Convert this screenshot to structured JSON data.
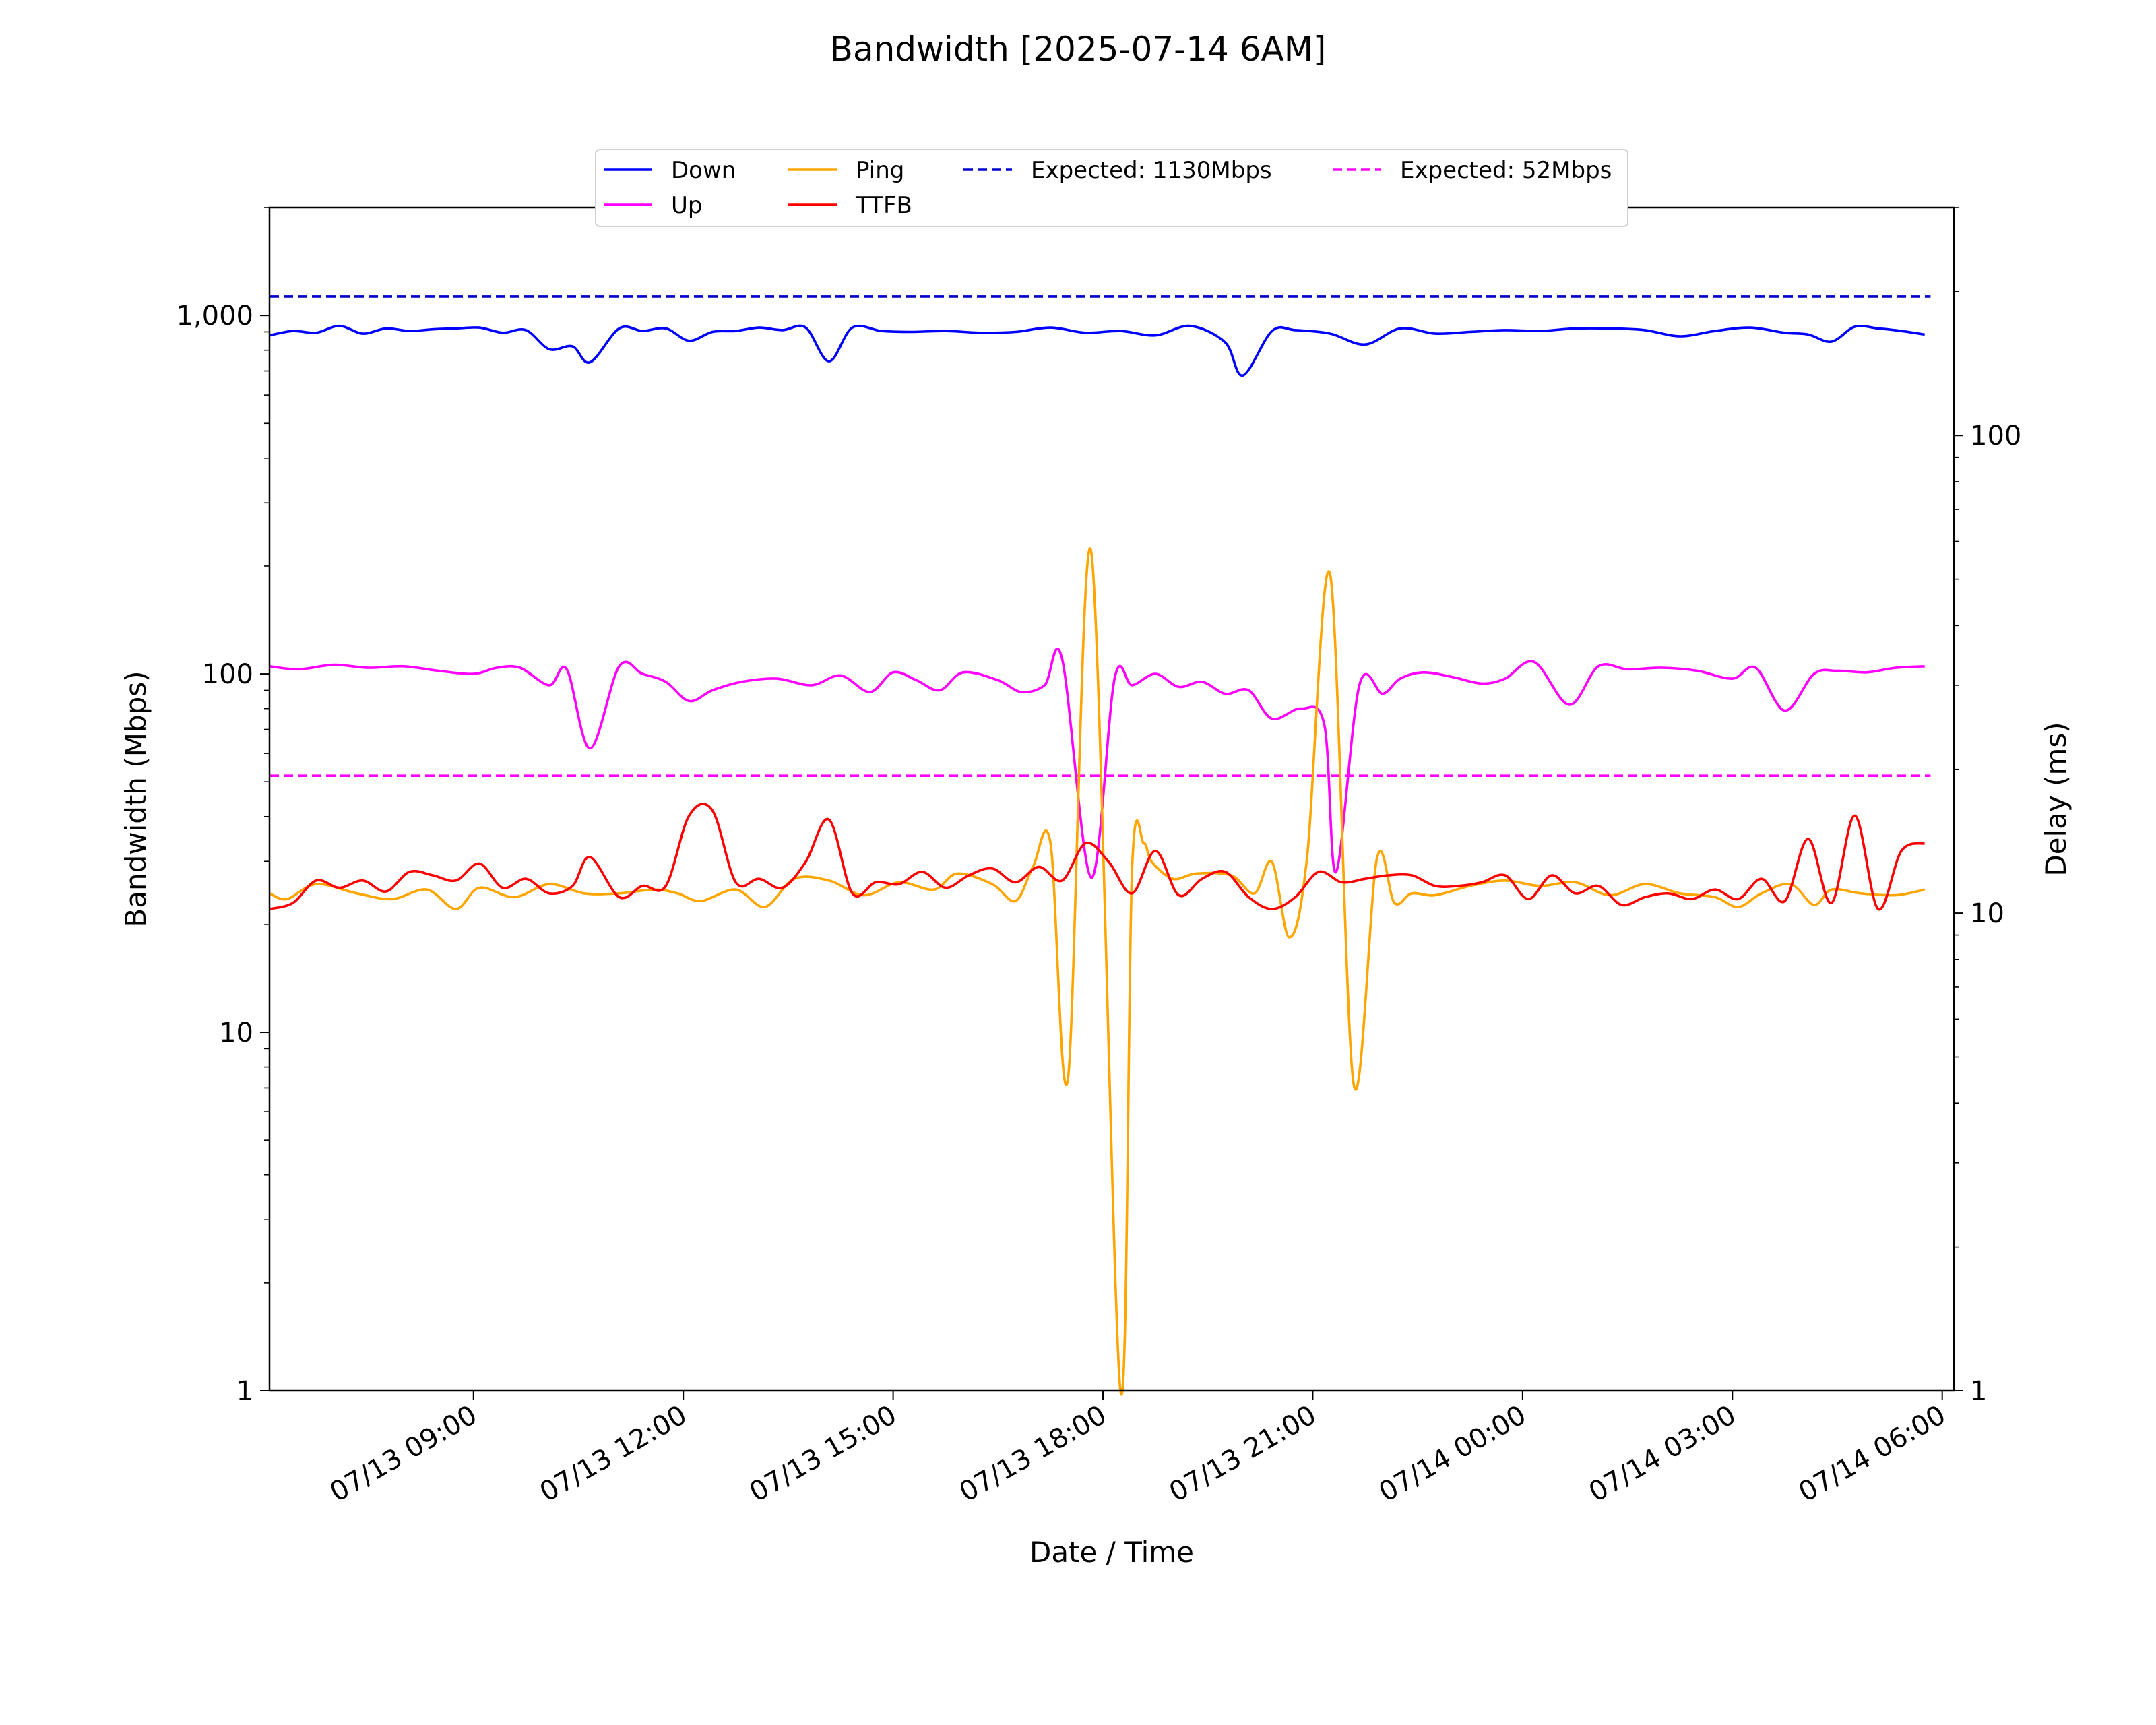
{
  "chart_data": {
    "type": "line",
    "title": "Bandwidth [2025-07-14 6AM]",
    "xlabel": "Date / Time",
    "ylabel": "Bandwidth (Mbps)",
    "ylabel_right": "Delay (ms)",
    "x_range": [
      "2025-07-13 06:05",
      "2025-07-14 06:10"
    ],
    "y_scale": "log",
    "ylim": [
      1,
      2000
    ],
    "ylim_right": [
      1,
      300
    ],
    "grid": false,
    "legend_position": "top-center",
    "x_ticks": [
      {
        "t": "2025-07-13 09:00",
        "label": "07/13 09:00"
      },
      {
        "t": "2025-07-13 12:00",
        "label": "07/13 12:00"
      },
      {
        "t": "2025-07-13 15:00",
        "label": "07/13 15:00"
      },
      {
        "t": "2025-07-13 18:00",
        "label": "07/13 18:00"
      },
      {
        "t": "2025-07-13 21:00",
        "label": "07/13 21:00"
      },
      {
        "t": "2025-07-14 00:00",
        "label": "07/14 00:00"
      },
      {
        "t": "2025-07-14 03:00",
        "label": "07/14 03:00"
      },
      {
        "t": "2025-07-14 06:00",
        "label": "07/14 06:00"
      }
    ],
    "y_ticks": [
      {
        "v": 1,
        "label": "1"
      },
      {
        "v": 10,
        "label": "10"
      },
      {
        "v": 100,
        "label": "100"
      },
      {
        "v": 1000,
        "label": "1,000"
      }
    ],
    "y_ticks_right": [
      {
        "v": 1,
        "label": "1"
      },
      {
        "v": 10,
        "label": "10"
      },
      {
        "v": 100,
        "label": "100"
      }
    ],
    "series": [
      {
        "name": "Down",
        "axis": "left",
        "color": "#0000ff",
        "style": "solid",
        "x": [
          "2025-07-13 06:05",
          "2025-07-13 06:25",
          "2025-07-13 06:45",
          "2025-07-13 07:05",
          "2025-07-13 07:25",
          "2025-07-13 07:45",
          "2025-07-13 08:05",
          "2025-07-13 08:25",
          "2025-07-13 08:45",
          "2025-07-13 09:05",
          "2025-07-13 09:25",
          "2025-07-13 09:45",
          "2025-07-13 10:05",
          "2025-07-13 10:25",
          "2025-07-13 10:40",
          "2025-07-13 11:05",
          "2025-07-13 11:25",
          "2025-07-13 11:45",
          "2025-07-13 12:05",
          "2025-07-13 12:25",
          "2025-07-13 12:45",
          "2025-07-13 13:05",
          "2025-07-13 13:25",
          "2025-07-13 13:45",
          "2025-07-13 14:05",
          "2025-07-13 14:25",
          "2025-07-13 14:50",
          "2025-07-13 15:15",
          "2025-07-13 15:45",
          "2025-07-13 16:15",
          "2025-07-13 16:45",
          "2025-07-13 17:15",
          "2025-07-13 17:45",
          "2025-07-13 18:15",
          "2025-07-13 18:45",
          "2025-07-13 19:15",
          "2025-07-13 19:45",
          "2025-07-13 20:00",
          "2025-07-13 20:25",
          "2025-07-13 20:45",
          "2025-07-13 21:15",
          "2025-07-13 21:45",
          "2025-07-13 22:15",
          "2025-07-13 22:45",
          "2025-07-13 23:15",
          "2025-07-13 23:45",
          "2025-07-14 00:15",
          "2025-07-14 00:45",
          "2025-07-14 01:15",
          "2025-07-14 01:45",
          "2025-07-14 02:15",
          "2025-07-14 02:45",
          "2025-07-14 03:15",
          "2025-07-14 03:45",
          "2025-07-14 04:05",
          "2025-07-14 04:25",
          "2025-07-14 04:45",
          "2025-07-14 05:05",
          "2025-07-14 05:25",
          "2025-07-14 05:45"
        ],
        "y": [
          880,
          905,
          895,
          935,
          890,
          920,
          905,
          915,
          920,
          925,
          895,
          910,
          805,
          820,
          740,
          920,
          905,
          920,
          850,
          900,
          905,
          925,
          910,
          925,
          745,
          925,
          905,
          900,
          905,
          895,
          900,
          925,
          895,
          905,
          880,
          935,
          840,
          680,
          905,
          910,
          890,
          830,
          920,
          890,
          900,
          910,
          905,
          920,
          920,
          910,
          875,
          905,
          925,
          895,
          885,
          845,
          930,
          920,
          905,
          885
        ]
      },
      {
        "name": "Up",
        "axis": "left",
        "color": "#ff00ff",
        "style": "solid",
        "x": [
          "2025-07-13 06:05",
          "2025-07-13 06:30",
          "2025-07-13 07:00",
          "2025-07-13 07:30",
          "2025-07-13 08:00",
          "2025-07-13 08:30",
          "2025-07-13 09:00",
          "2025-07-13 09:20",
          "2025-07-13 09:40",
          "2025-07-13 10:05",
          "2025-07-13 10:20",
          "2025-07-13 10:40",
          "2025-07-13 11:05",
          "2025-07-13 11:25",
          "2025-07-13 11:45",
          "2025-07-13 12:05",
          "2025-07-13 12:25",
          "2025-07-13 12:50",
          "2025-07-13 13:20",
          "2025-07-13 13:50",
          "2025-07-13 14:15",
          "2025-07-13 14:40",
          "2025-07-13 15:00",
          "2025-07-13 15:20",
          "2025-07-13 15:40",
          "2025-07-13 16:00",
          "2025-07-13 16:30",
          "2025-07-13 16:50",
          "2025-07-13 17:10",
          "2025-07-13 17:25",
          "2025-07-13 17:50",
          "2025-07-13 18:10",
          "2025-07-13 18:25",
          "2025-07-13 18:45",
          "2025-07-13 19:05",
          "2025-07-13 19:25",
          "2025-07-13 19:45",
          "2025-07-13 20:05",
          "2025-07-13 20:25",
          "2025-07-13 20:50",
          "2025-07-13 21:10",
          "2025-07-13 21:20",
          "2025-07-13 21:40",
          "2025-07-13 22:00",
          "2025-07-13 22:15",
          "2025-07-13 22:35",
          "2025-07-13 23:00",
          "2025-07-13 23:25",
          "2025-07-13 23:45",
          "2025-07-14 00:10",
          "2025-07-14 00:40",
          "2025-07-14 01:05",
          "2025-07-14 01:30",
          "2025-07-14 02:00",
          "2025-07-14 02:30",
          "2025-07-14 03:00",
          "2025-07-14 03:20",
          "2025-07-14 03:45",
          "2025-07-14 04:10",
          "2025-07-14 04:30",
          "2025-07-14 04:55",
          "2025-07-14 05:20",
          "2025-07-14 05:45"
        ],
        "y": [
          105,
          103,
          106,
          104,
          105,
          102,
          100,
          104,
          104,
          93,
          103,
          62,
          105,
          100,
          95,
          84,
          90,
          95,
          97,
          93,
          99,
          89,
          101,
          96,
          90,
          101,
          96,
          89,
          93,
          110,
          27,
          97,
          93,
          100,
          92,
          95,
          88,
          90,
          75,
          80,
          72,
          28,
          93,
          88,
          97,
          101,
          98,
          94,
          97,
          108,
          82,
          105,
          103,
          104,
          102,
          97,
          104,
          79,
          100,
          102,
          101,
          104,
          105
        ]
      },
      {
        "name": "Ping",
        "axis": "right",
        "color": "#ffa500",
        "style": "solid",
        "x": [
          "2025-07-13 06:05",
          "2025-07-13 06:20",
          "2025-07-13 06:45",
          "2025-07-13 07:20",
          "2025-07-13 07:50",
          "2025-07-13 08:20",
          "2025-07-13 08:45",
          "2025-07-13 09:05",
          "2025-07-13 09:35",
          "2025-07-13 10:05",
          "2025-07-13 10:35",
          "2025-07-13 11:05",
          "2025-07-13 11:35",
          "2025-07-13 11:55",
          "2025-07-13 12:15",
          "2025-07-13 12:45",
          "2025-07-13 13:10",
          "2025-07-13 13:35",
          "2025-07-13 14:05",
          "2025-07-13 14:35",
          "2025-07-13 15:05",
          "2025-07-13 15:35",
          "2025-07-13 15:55",
          "2025-07-13 16:25",
          "2025-07-13 16:45",
          "2025-07-13 17:00",
          "2025-07-13 17:15",
          "2025-07-13 17:30",
          "2025-07-13 17:50",
          "2025-07-13 18:15",
          "2025-07-13 18:25",
          "2025-07-13 18:35",
          "2025-07-13 18:42",
          "2025-07-13 19:00",
          "2025-07-13 19:20",
          "2025-07-13 19:50",
          "2025-07-13 20:10",
          "2025-07-13 20:25",
          "2025-07-13 20:40",
          "2025-07-13 20:55",
          "2025-07-13 21:15",
          "2025-07-13 21:35",
          "2025-07-13 21:55",
          "2025-07-13 22:10",
          "2025-07-13 22:25",
          "2025-07-13 22:45",
          "2025-07-13 23:15",
          "2025-07-13 23:45",
          "2025-07-14 00:15",
          "2025-07-14 00:45",
          "2025-07-14 01:15",
          "2025-07-14 01:45",
          "2025-07-14 02:15",
          "2025-07-14 02:45",
          "2025-07-14 03:05",
          "2025-07-14 03:25",
          "2025-07-14 03:50",
          "2025-07-14 04:10",
          "2025-07-14 04:25",
          "2025-07-14 04:50",
          "2025-07-14 05:20",
          "2025-07-14 05:45"
        ],
        "y": [
          11,
          10.7,
          11.5,
          11,
          10.7,
          11.2,
          10.2,
          11.3,
          10.8,
          11.5,
          11,
          11,
          11.2,
          11,
          10.6,
          11.2,
          10.3,
          11.8,
          11.7,
          10.9,
          11.6,
          11.2,
          12.1,
          11.5,
          10.6,
          12.5,
          14,
          4.5,
          57,
          1,
          12.4,
          14,
          12.8,
          11.8,
          12.1,
          12,
          11,
          12.8,
          8.9,
          13,
          51,
          4.4,
          13,
          10.5,
          11,
          10.9,
          11.4,
          11.7,
          11.4,
          11.6,
          10.9,
          11.5,
          11,
          10.8,
          10.3,
          11,
          11.5,
          10.4,
          11.2,
          11,
          10.9,
          11.2
        ]
      },
      {
        "name": "TTFB",
        "axis": "right",
        "color": "#ff0000",
        "style": "solid",
        "x": [
          "2025-07-13 06:05",
          "2025-07-13 06:25",
          "2025-07-13 06:45",
          "2025-07-13 07:05",
          "2025-07-13 07:25",
          "2025-07-13 07:45",
          "2025-07-13 08:05",
          "2025-07-13 08:25",
          "2025-07-13 08:45",
          "2025-07-13 09:05",
          "2025-07-13 09:25",
          "2025-07-13 09:45",
          "2025-07-13 10:05",
          "2025-07-13 10:25",
          "2025-07-13 10:40",
          "2025-07-13 11:05",
          "2025-07-13 11:25",
          "2025-07-13 11:45",
          "2025-07-13 12:05",
          "2025-07-13 12:25",
          "2025-07-13 12:45",
          "2025-07-13 13:05",
          "2025-07-13 13:25",
          "2025-07-13 13:45",
          "2025-07-13 14:05",
          "2025-07-13 14:25",
          "2025-07-13 14:45",
          "2025-07-13 15:05",
          "2025-07-13 15:25",
          "2025-07-13 15:45",
          "2025-07-13 16:05",
          "2025-07-13 16:25",
          "2025-07-13 16:45",
          "2025-07-13 17:05",
          "2025-07-13 17:25",
          "2025-07-13 17:45",
          "2025-07-13 18:05",
          "2025-07-13 18:25",
          "2025-07-13 18:45",
          "2025-07-13 19:05",
          "2025-07-13 19:25",
          "2025-07-13 19:45",
          "2025-07-13 20:05",
          "2025-07-13 20:25",
          "2025-07-13 20:45",
          "2025-07-13 21:05",
          "2025-07-13 21:25",
          "2025-07-13 21:45",
          "2025-07-13 22:05",
          "2025-07-13 22:25",
          "2025-07-13 22:45",
          "2025-07-13 23:05",
          "2025-07-13 23:25",
          "2025-07-13 23:45",
          "2025-07-14 00:05",
          "2025-07-14 00:25",
          "2025-07-14 00:45",
          "2025-07-14 01:05",
          "2025-07-14 01:25",
          "2025-07-14 01:45",
          "2025-07-14 02:05",
          "2025-07-14 02:25",
          "2025-07-14 02:45",
          "2025-07-14 03:05",
          "2025-07-14 03:25",
          "2025-07-14 03:45",
          "2025-07-14 04:05",
          "2025-07-14 04:25",
          "2025-07-14 04:45",
          "2025-07-14 05:05",
          "2025-07-14 05:25",
          "2025-07-14 05:45"
        ],
        "y": [
          10.2,
          10.5,
          11.7,
          11.3,
          11.7,
          11.1,
          12.2,
          12,
          11.7,
          12.7,
          11.3,
          11.8,
          11,
          11.4,
          13.1,
          10.8,
          11.4,
          11.4,
          16,
          16.4,
          11.6,
          11.8,
          11.3,
          12.8,
          15.7,
          11,
          11.6,
          11.5,
          12.2,
          11.3,
          12,
          12.4,
          11.6,
          12.5,
          11.7,
          14,
          12.8,
          11,
          13.5,
          10.9,
          11.8,
          12.2,
          10.8,
          10.2,
          10.8,
          12.2,
          11.6,
          11.8,
          12,
          12,
          11.4,
          11.4,
          11.6,
          12,
          10.7,
          12,
          11,
          11.4,
          10.4,
          10.8,
          11,
          10.7,
          11.2,
          10.7,
          11.8,
          10.6,
          14.3,
          10.5,
          16,
          10.2,
          13.5,
          14
        ]
      },
      {
        "name": "Expected: 1130Mbps",
        "axis": "left",
        "color": "#0000cc",
        "style": "dashed",
        "x": [
          "2025-07-13 06:05",
          "2025-07-14 05:50"
        ],
        "y": [
          1130,
          1130
        ]
      },
      {
        "name": "Expected: 52Mbps",
        "axis": "left",
        "color": "#ff00ff",
        "style": "dashed",
        "x": [
          "2025-07-13 06:05",
          "2025-07-14 05:50"
        ],
        "y": [
          52,
          52
        ]
      }
    ]
  }
}
